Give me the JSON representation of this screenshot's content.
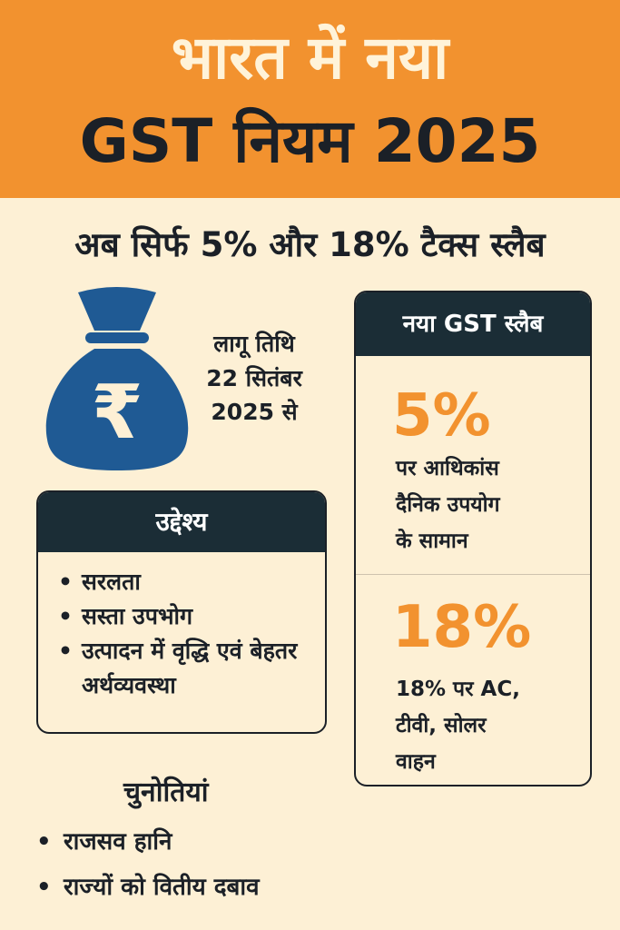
{
  "header": {
    "title_line1": "भारत में नया",
    "title_line2": "GST नियम 2025",
    "bg_color": "#F2922F"
  },
  "subtitle": "अब सिर्फ 5% और 18% टैक्स स्लैब",
  "effective_date": {
    "line1": "लागू तिथि",
    "line2": "22 सितंबर",
    "line3": "2025 से"
  },
  "icons": {
    "money_bag": "money-bag-rupee-icon",
    "rupee_symbol": "₹"
  },
  "objective": {
    "heading": "उद्देश्य",
    "items": [
      "सरलता",
      "सस्ता उपभोग",
      "उत्पादन में वृद्धि एवं बेहतर अर्थव्यवस्था"
    ]
  },
  "slab": {
    "heading": "नया GST स्लैब",
    "items": [
      {
        "rate": "5%",
        "desc_line1": "पर आथिकांस",
        "desc_line2": "दैनिक उपयोग",
        "desc_line3": "के सामान"
      },
      {
        "rate": "18%",
        "desc_line1": "18% पर AC,",
        "desc_line2": "टीवी, सोलर",
        "desc_line3": "वाहन"
      }
    ],
    "accent_color": "#F2922F"
  },
  "challenges": {
    "heading": "चुनोतियां",
    "items": [
      "राजसव हानि",
      "राज्यों को वितीय दबाव"
    ]
  }
}
